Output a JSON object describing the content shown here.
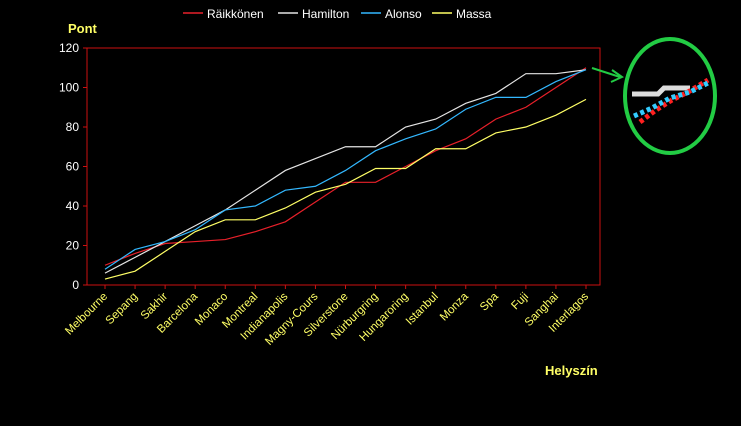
{
  "chart_data": {
    "type": "line",
    "title": "",
    "ylabel": "Pont",
    "xlabel": "Helyszín",
    "ylim": [
      0,
      120
    ],
    "yticks": [
      0,
      20,
      40,
      60,
      80,
      100,
      120
    ],
    "categories": [
      "Melbourne",
      "Sepang",
      "Sakhir",
      "Barcelona",
      "Monaco",
      "Montreal",
      "Indianapolis",
      "Magny-Cours",
      "Silverstone",
      "Nürburgring",
      "Hungaroring",
      "Istanbul",
      "Monza",
      "Spa",
      "Fuji",
      "Sanghai",
      "Interlagos"
    ],
    "legend_position": "top",
    "grid": false,
    "series": [
      {
        "name": "Räikkönen",
        "color": "#e8202a",
        "values": [
          10,
          16,
          21,
          22,
          23,
          27,
          32,
          42,
          52,
          52,
          60,
          68,
          74,
          84,
          90,
          100,
          110
        ]
      },
      {
        "name": "Hamilton",
        "color": "#e4e4e4",
        "values": [
          6,
          14,
          22,
          30,
          38,
          48,
          58,
          64,
          70,
          70,
          80,
          84,
          92,
          97,
          107,
          107,
          109
        ]
      },
      {
        "name": "Alonso",
        "color": "#33b8ff",
        "values": [
          8,
          18,
          22,
          28,
          38,
          40,
          48,
          50,
          58,
          68,
          74,
          79,
          89,
          95,
          95,
          103,
          109
        ]
      },
      {
        "name": "Massa",
        "color": "#ffff66",
        "values": [
          3,
          7,
          17,
          27,
          33,
          33,
          39,
          47,
          51,
          59,
          59,
          69,
          69,
          77,
          80,
          86,
          94
        ]
      }
    ],
    "axis_color": "#cc1111",
    "zoom_ring_color": "#22cc44"
  }
}
